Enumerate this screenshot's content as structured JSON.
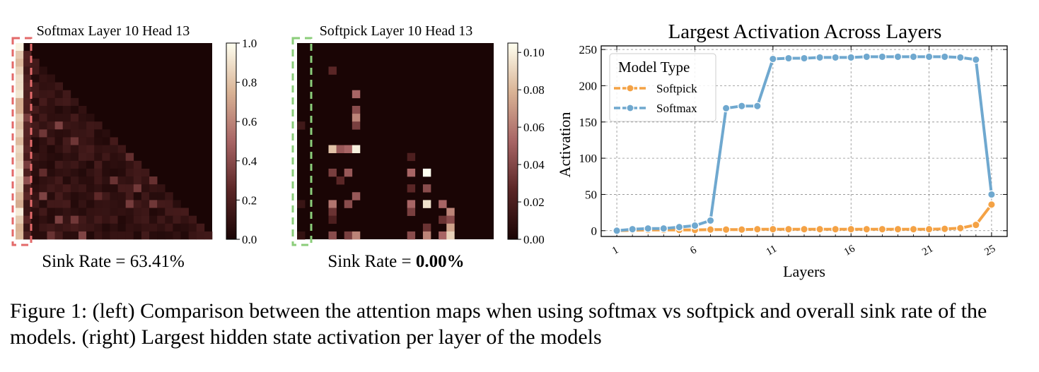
{
  "colors": {
    "softpick": "#f4a245",
    "softmax": "#6fa8cf",
    "sink_box_softmax": "#e36a6a",
    "sink_box_softpick": "#8bcd7a"
  },
  "chart_data": [
    {
      "type": "heatmap",
      "title": "Softmax Layer 10 Head 13",
      "colorbar": {
        "min": 0.0,
        "max": 1.0,
        "ticks": [
          "0.0",
          "0.2",
          "0.4",
          "0.6",
          "0.8",
          "1.0"
        ]
      },
      "annotation": {
        "label": "Sink Rate = ",
        "value": "63.41%"
      }
    },
    {
      "type": "heatmap",
      "title": "Softpick Layer 10 Head 13",
      "colorbar": {
        "min": 0.0,
        "max": 0.105,
        "ticks": [
          "0.00",
          "0.02",
          "0.04",
          "0.06",
          "0.08",
          "0.10"
        ]
      },
      "annotation": {
        "label": "Sink Rate = ",
        "value": "0.00%"
      }
    },
    {
      "type": "line",
      "title": "Largest Activation Across Layers",
      "xlabel": "Layers",
      "ylabel": "Activation",
      "xlim": [
        0,
        26
      ],
      "ylim": [
        -8,
        255
      ],
      "xticks": [
        1,
        6,
        11,
        16,
        21,
        25
      ],
      "yticks": [
        0,
        50,
        100,
        150,
        200,
        250
      ],
      "grid": true,
      "legend": {
        "title": "Model Type",
        "position": "top-left"
      },
      "x": [
        1,
        2,
        3,
        4,
        5,
        6,
        7,
        8,
        9,
        10,
        11,
        12,
        13,
        14,
        15,
        16,
        17,
        18,
        19,
        20,
        21,
        22,
        23,
        24,
        25
      ],
      "series": [
        {
          "name": "Softpick",
          "color": "#f4a245",
          "values": [
            0,
            0.5,
            1,
            1,
            1,
            1,
            1.5,
            1.5,
            1.5,
            2,
            2,
            2,
            2,
            2,
            2,
            2,
            2,
            2,
            2,
            2,
            2,
            2.5,
            3.5,
            8,
            36
          ]
        },
        {
          "name": "Softmax",
          "color": "#6fa8cf",
          "values": [
            0,
            2,
            3,
            3,
            5,
            7,
            14,
            169,
            172,
            172,
            237,
            238,
            238,
            239,
            239,
            239,
            240,
            240,
            240,
            240,
            240,
            240,
            239,
            236,
            50
          ]
        }
      ]
    }
  ],
  "caption": "Figure 1: (left) Comparison between the attention maps when using softmax vs softpick and overall sink rate of the models. (right) Largest hidden state activation per layer of the models"
}
